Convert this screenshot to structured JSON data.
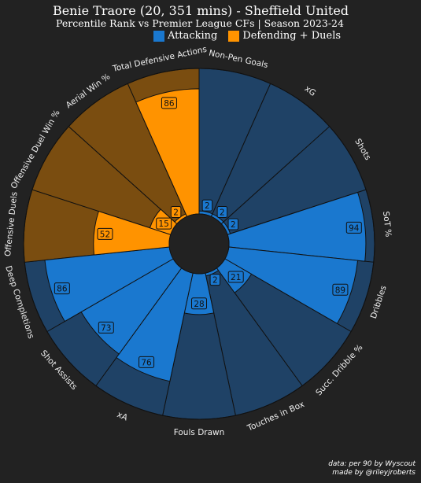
{
  "header": {
    "title": "Benie Traore (20, 351 mins) - Sheffield United",
    "subtitle": "Percentile Rank vs Premier League CFs | Season 2023-24"
  },
  "legend": [
    {
      "label": "Attacking",
      "color": "#1a78cf"
    },
    {
      "label": "Defending + Duels",
      "color": "#ff9300"
    }
  ],
  "footer": {
    "line1": "data: per 90 by Wyscout",
    "line2": "made by @rileyjroberts"
  },
  "colors": {
    "background": "#222222",
    "attacking_fill": "#1a78cf",
    "attacking_bg": "#1f4266",
    "defending_fill": "#ff9300",
    "defending_bg": "#7a4d10"
  },
  "chart_data": {
    "type": "pizza",
    "ylim": [
      0,
      100
    ],
    "start_angle_deg": 90,
    "direction": "clockwise",
    "slices": [
      {
        "label": "Non-Pen Goals",
        "value": 2,
        "group": "Attacking"
      },
      {
        "label": "xG",
        "value": 2,
        "group": "Attacking"
      },
      {
        "label": "Shots",
        "value": 2,
        "group": "Attacking"
      },
      {
        "label": "SoT %",
        "value": 94,
        "group": "Attacking"
      },
      {
        "label": "Dribbles",
        "value": 89,
        "group": "Attacking"
      },
      {
        "label": "Succ. Dribble %",
        "value": 21,
        "group": "Attacking"
      },
      {
        "label": "Touches in Box",
        "value": 2,
        "group": "Attacking"
      },
      {
        "label": "Fouls Drawn",
        "value": 28,
        "group": "Attacking"
      },
      {
        "label": "xA",
        "value": 76,
        "group": "Attacking"
      },
      {
        "label": "Shot Assists",
        "value": 73,
        "group": "Attacking"
      },
      {
        "label": "Deep Completions",
        "value": 86,
        "group": "Attacking"
      },
      {
        "label": "Offensive Duels",
        "value": 52,
        "group": "Defending + Duels"
      },
      {
        "label": "Offensive Duel Win %",
        "value": 15,
        "group": "Defending + Duels"
      },
      {
        "label": "Aerial Win %",
        "value": 2,
        "group": "Defending + Duels"
      },
      {
        "label": "Total Defensive Actions",
        "value": 86,
        "group": "Defending + Duels"
      }
    ]
  }
}
